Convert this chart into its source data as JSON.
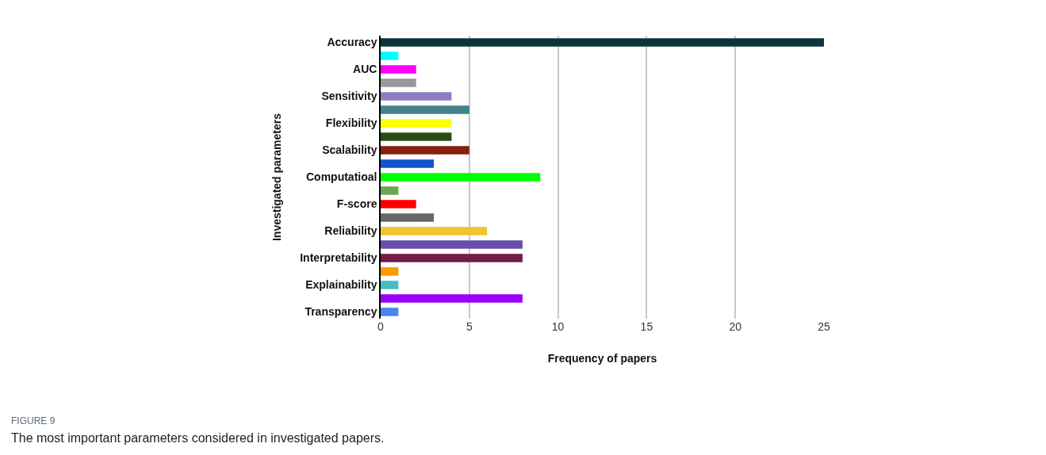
{
  "chart_data": {
    "type": "bar",
    "orientation": "horizontal",
    "xlabel": "Frequency of papers",
    "ylabel": "Investigated parameters",
    "categories": [
      "Accuracy",
      null,
      "AUC",
      null,
      "Sensitivity",
      null,
      "Flexibility",
      null,
      "Scalability",
      null,
      "Computatioal",
      null,
      "F-score",
      null,
      "Reliability",
      null,
      "Interpretability",
      null,
      "Explainability",
      null,
      "Transparency"
    ],
    "values": [
      25,
      1,
      2,
      2,
      4,
      5,
      4,
      4,
      5,
      3,
      9,
      1,
      2,
      3,
      6,
      8,
      8,
      1,
      1,
      8,
      1
    ],
    "colors": [
      "#0c343d",
      "#00ffff",
      "#ff00ff",
      "#999999",
      "#8e7cc3",
      "#45818e",
      "#ffff00",
      "#274e13",
      "#85200c",
      "#1155cc",
      "#00ff00",
      "#6aa84f",
      "#ff0000",
      "#666666",
      "#f1c232",
      "#674ea7",
      "#741b47",
      "#ff9900",
      "#46bdc6",
      "#9900ff",
      "#4a86e8"
    ],
    "xlim": [
      0,
      25
    ],
    "xticks": [
      0,
      5,
      10,
      15,
      20,
      25
    ],
    "grid": "x",
    "annotations": [
      "FIGURE 9",
      "The most important parameters considered in investigated papers."
    ]
  }
}
